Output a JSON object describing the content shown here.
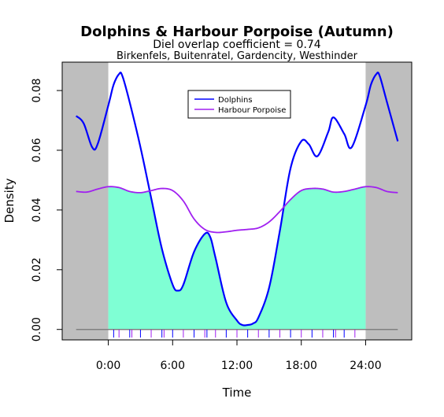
{
  "chart_data": {
    "type": "line",
    "title": "Dolphins & Harbour Porpoise (Autumn)",
    "subtitle_1": "Diel overlap coefficient =  0.74",
    "subtitle_2": "Birkenfels, Buitenratel, Gardencity, Westhinder",
    "xlabel": "Time",
    "ylabel": "Density",
    "xlim": [
      -4.3,
      28.3
    ],
    "ylim": [
      -0.0035,
      0.0895
    ],
    "x_ticks": [
      0,
      6,
      12,
      18,
      24
    ],
    "x_tick_labels": [
      "0:00",
      "6:00",
      "12:00",
      "18:00",
      "24:00"
    ],
    "y_ticks": [
      0.0,
      0.02,
      0.04,
      0.06,
      0.08
    ],
    "y_tick_labels": [
      "0.00",
      "0.02",
      "0.04",
      "0.06",
      "0.08"
    ],
    "shaded_regions": [
      [
        -4.3,
        0
      ],
      [
        24,
        28.3
      ]
    ],
    "overlap_fill_color": "#7fffd4",
    "shade_color": "#bebebe",
    "legend_position": "top-center",
    "series": [
      {
        "name": "Dolphins",
        "color": "#0000ff",
        "x": [
          -3,
          -2.3,
          -1.5,
          -1,
          0,
          0.5,
          1,
          1.3,
          2,
          3,
          4,
          5,
          6,
          6.5,
          7,
          8,
          9,
          9.5,
          10,
          11,
          12,
          12.5,
          13,
          13.5,
          14,
          15,
          16,
          17,
          18,
          18.7,
          19.5,
          20.5,
          21,
          22,
          22.7,
          24,
          24.5,
          25,
          25.3,
          26,
          27
        ],
        "y": [
          0.0715,
          0.069,
          0.061,
          0.062,
          0.075,
          0.082,
          0.0855,
          0.085,
          0.076,
          0.061,
          0.044,
          0.027,
          0.015,
          0.013,
          0.015,
          0.026,
          0.032,
          0.031,
          0.024,
          0.009,
          0.003,
          0.0015,
          0.0015,
          0.002,
          0.004,
          0.014,
          0.033,
          0.054,
          0.063,
          0.062,
          0.058,
          0.066,
          0.071,
          0.0655,
          0.061,
          0.075,
          0.082,
          0.0855,
          0.085,
          0.076,
          0.063
        ]
      },
      {
        "name": "Harbour Porpoise",
        "color": "#a020f0",
        "x": [
          -3,
          -2,
          -1,
          0,
          1,
          2,
          3,
          4,
          5,
          6,
          7,
          8,
          9,
          10,
          11,
          12,
          13,
          14,
          15,
          16,
          17,
          18,
          19,
          20,
          21,
          22,
          23,
          24,
          25,
          26,
          27
        ],
        "y": [
          0.0462,
          0.046,
          0.047,
          0.0478,
          0.0475,
          0.0462,
          0.0458,
          0.0465,
          0.0472,
          0.0465,
          0.043,
          0.037,
          0.0335,
          0.0325,
          0.0327,
          0.0332,
          0.0335,
          0.034,
          0.036,
          0.0395,
          0.0435,
          0.0465,
          0.0472,
          0.047,
          0.046,
          0.0462,
          0.047,
          0.0478,
          0.0475,
          0.0462,
          0.0458
        ]
      }
    ],
    "rug_marks_x": [
      0.5,
      1.0,
      2.0,
      2.2,
      3.0,
      4.0,
      5.0,
      5.2,
      6.0,
      7.0,
      8.0,
      9.0,
      9.2,
      10.0,
      11.0,
      12.0,
      13.0,
      14.0,
      15.0,
      16.0,
      17.0,
      18.0,
      19.0,
      20.0,
      21.0,
      21.2,
      22.0,
      23.0
    ]
  }
}
